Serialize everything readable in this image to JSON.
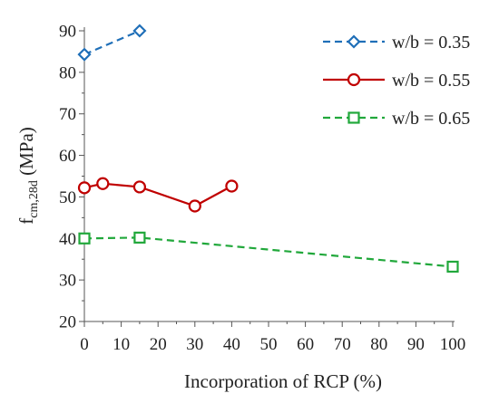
{
  "chart_data": {
    "type": "line",
    "title": "",
    "xlabel": "Incorporation of RCP (%)",
    "ylabel": {
      "base": "f",
      "subscript": "cm,28d",
      "unit": " (MPa)"
    },
    "xlim": [
      0,
      100
    ],
    "ylim": [
      20,
      90
    ],
    "xticks": [
      0,
      10,
      20,
      30,
      40,
      50,
      60,
      70,
      80,
      90,
      100
    ],
    "yticks": [
      20,
      30,
      40,
      50,
      60,
      70,
      80,
      90
    ],
    "grid": false,
    "legend_position": "top-right",
    "series": [
      {
        "name": "w/b = 0.35",
        "color": "#1f6fb8",
        "marker": "diamond",
        "line_style": "dashed",
        "x": [
          0,
          15
        ],
        "y": [
          84.3,
          90.0
        ]
      },
      {
        "name": "w/b = 0.55",
        "color": "#c00000",
        "marker": "circle",
        "line_style": "solid",
        "x": [
          0,
          5,
          15,
          30,
          40
        ],
        "y": [
          52.2,
          53.2,
          52.4,
          47.8,
          52.6
        ]
      },
      {
        "name": "w/b = 0.65",
        "color": "#21a83b",
        "marker": "square",
        "line_style": "dashed",
        "x": [
          0,
          15,
          100
        ],
        "y": [
          40.0,
          40.2,
          33.2
        ]
      }
    ]
  }
}
